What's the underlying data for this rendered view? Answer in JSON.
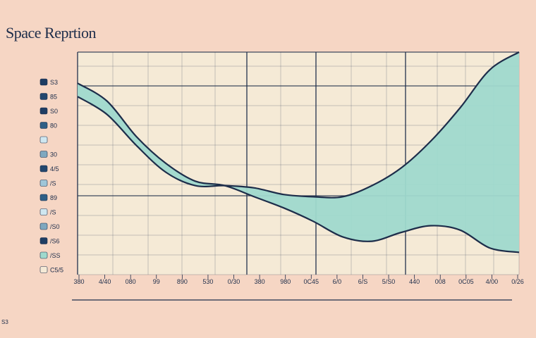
{
  "page": {
    "title": "Space Reprtion",
    "footnote": "S3"
  },
  "colors": {
    "background": "#f6d6c4",
    "plot_area": "#f5ead6",
    "grid": "#1d2d4a",
    "area_fill": "#9fd9cd",
    "line": "#1d2d4a"
  },
  "chart_data": {
    "type": "area",
    "title": "Space Reprtion",
    "xlabel": "",
    "ylabel": "",
    "grid": true,
    "x_tick_labels": [
      "380",
      "4/40",
      "080",
      "99",
      "890",
      "530",
      "0/30",
      "380",
      "980",
      "0C45",
      "6/0",
      "6/S",
      "5/S0",
      "440",
      "008",
      "0C05",
      "4/00",
      "0/26"
    ],
    "y_tick_labels": [
      "S3",
      "85",
      "S0",
      "80",
      "",
      "30",
      "4/5",
      "/S",
      "89",
      "/S",
      "/S0",
      "/S6",
      "/SS",
      "C5/5"
    ],
    "y_tick_colors": [
      "#1e3d63",
      "#23476e",
      "#1e3d63",
      "#2f5f86",
      "#cfe7f0",
      "#7fa8bf",
      "#23476e",
      "#9fc6d8",
      "#2f5f86",
      "#cfe7f0",
      "#7fa8bf",
      "#1e3d63",
      "#9fd9cd",
      "#f5ead6"
    ],
    "x": [
      0,
      2,
      4,
      6,
      8,
      10,
      12,
      14,
      16,
      18,
      20,
      22,
      24,
      26,
      28,
      30
    ],
    "series": [
      {
        "values": [
          0.86,
          0.78,
          0.62,
          0.5,
          0.42,
          0.4,
          0.35,
          0.3,
          0.24,
          0.17,
          0.15,
          0.19,
          0.22,
          0.2,
          0.12,
          0.1
        ]
      },
      {
        "values": [
          0.8,
          0.72,
          0.58,
          0.46,
          0.4,
          0.4,
          0.39,
          0.36,
          0.35,
          0.35,
          0.4,
          0.48,
          0.6,
          0.75,
          0.92,
          1.0
        ]
      }
    ],
    "xlim": [
      0,
      30
    ],
    "ylim": [
      0,
      1
    ]
  }
}
